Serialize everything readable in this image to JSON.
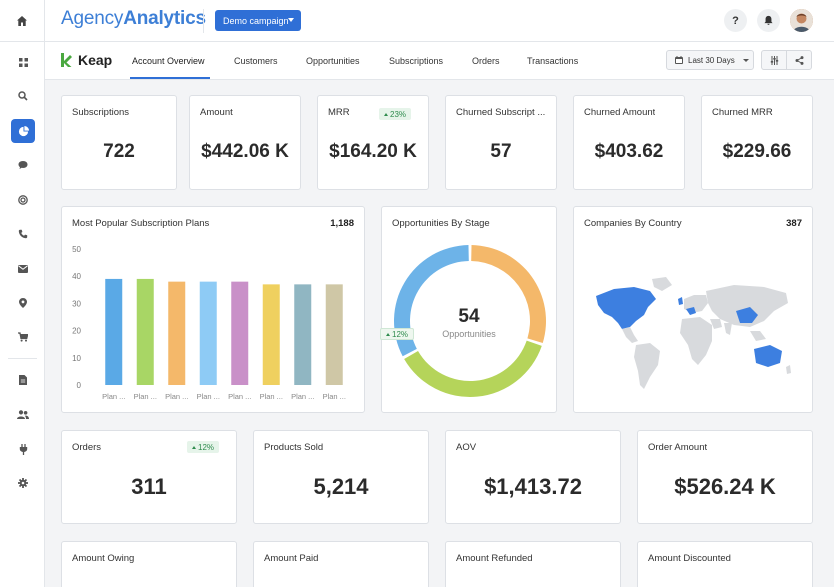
{
  "header": {
    "logo_light": "Agency",
    "logo_bold": "Analytics",
    "campaign_button": "Demo campaign",
    "help_icon": "?"
  },
  "subheader": {
    "brand": "Keap",
    "tabs": [
      "Account Overview",
      "Customers",
      "Opportunities",
      "Subscriptions",
      "Orders",
      "Transactions"
    ],
    "date_range": "Last 30 Days"
  },
  "kpis_top": [
    {
      "title": "Subscriptions",
      "value": "722"
    },
    {
      "title": "Amount",
      "value": "$442.06 K"
    },
    {
      "title": "MRR",
      "value": "$164.20 K",
      "badge": "23%"
    },
    {
      "title": "Churned Subscript ...",
      "value": "57"
    },
    {
      "title": "Churned Amount",
      "value": "$403.62"
    },
    {
      "title": "Churned MRR",
      "value": "$229.66"
    }
  ],
  "charts": {
    "plans": {
      "title": "Most Popular Subscription Plans",
      "count": "1,188"
    },
    "stage": {
      "title": "Opportunities By Stage",
      "center_value": "54",
      "center_label": "Opportunities",
      "badge": "12%"
    },
    "country": {
      "title": "Companies By Country",
      "count": "387"
    }
  },
  "chart_data": [
    {
      "type": "bar",
      "title": "Most Popular Subscription Plans",
      "categories": [
        "Plan ...",
        "Plan ...",
        "Plan ...",
        "Plan ...",
        "Plan ...",
        "Plan ...",
        "Plan ...",
        "Plan ..."
      ],
      "values": [
        39,
        39,
        38,
        38,
        38,
        37,
        37,
        37
      ],
      "colors": [
        "#5aa9e6",
        "#a8d665",
        "#f4b86a",
        "#8ecbf5",
        "#c990c8",
        "#efd05f",
        "#90b6c2",
        "#cfc7a6"
      ],
      "yticks": [
        "0",
        "10",
        "20",
        "30",
        "40",
        "50"
      ],
      "ylim": [
        0,
        50
      ]
    },
    {
      "type": "pie",
      "title": "Opportunities By Stage",
      "values": [
        30,
        37,
        33
      ],
      "colors": [
        "#f4b86a",
        "#b5d45a",
        "#6db3e8"
      ]
    }
  ],
  "kpis_mid": [
    {
      "title": "Orders",
      "value": "311",
      "badge": "12%"
    },
    {
      "title": "Products Sold",
      "value": "5,214"
    },
    {
      "title": "AOV",
      "value": "$1,413.72"
    },
    {
      "title": "Order Amount",
      "value": "$526.24 K"
    }
  ],
  "kpis_bottom": [
    {
      "title": "Amount Owing"
    },
    {
      "title": "Amount Paid"
    },
    {
      "title": "Amount Refunded"
    },
    {
      "title": "Amount Discounted"
    }
  ],
  "colors": {
    "accent": "#2f6fd6",
    "map_highlight": "#3d7fe0",
    "map_base": "#d8dadd"
  }
}
